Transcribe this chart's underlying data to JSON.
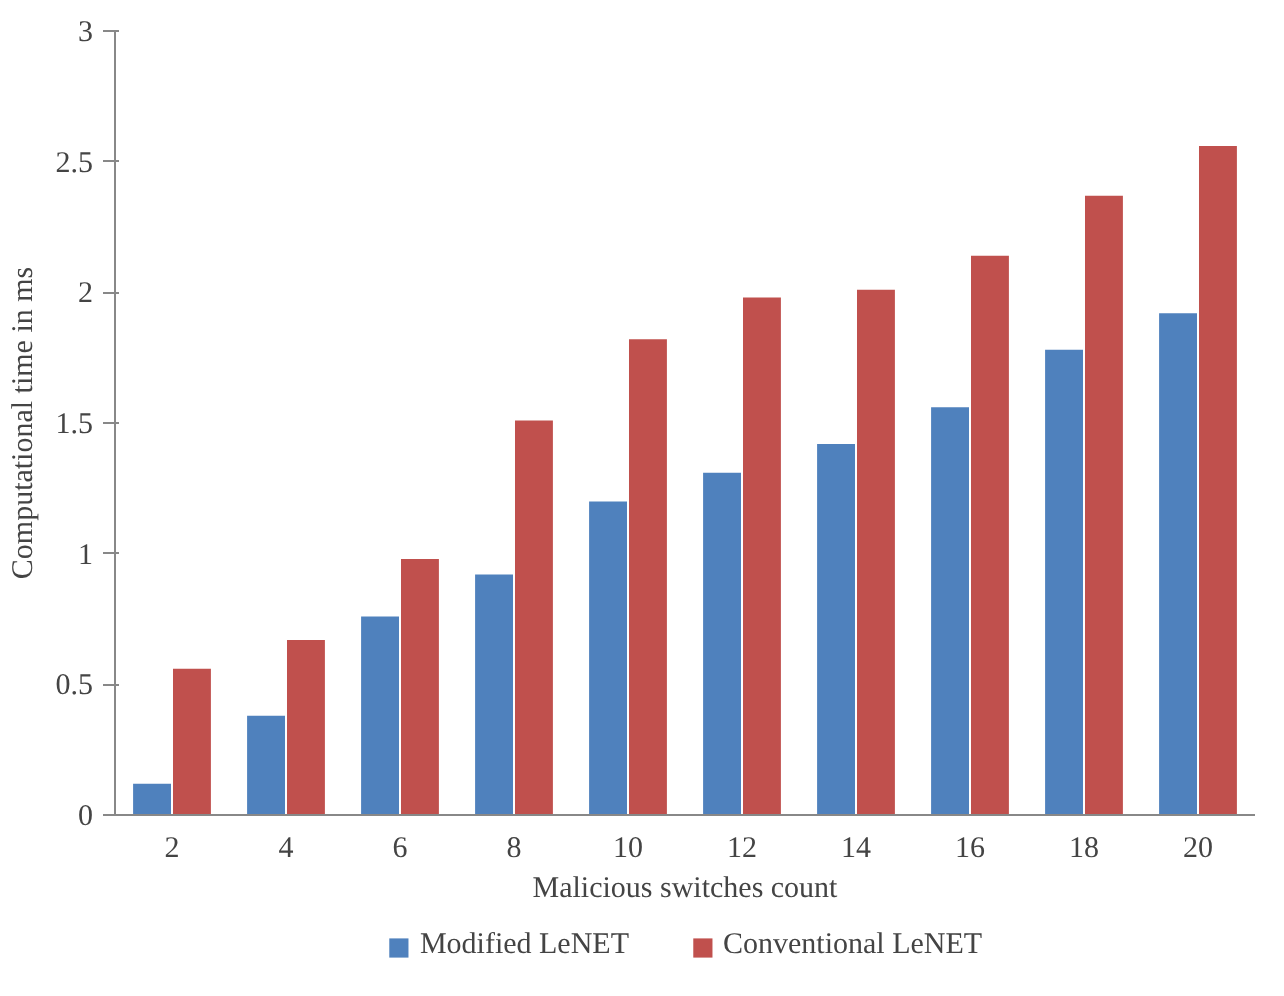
{
  "chart_data": {
    "type": "bar",
    "xlabel": "Malicious switches count",
    "ylabel": "Computational time in ms",
    "categories": [
      "2",
      "4",
      "6",
      "8",
      "10",
      "12",
      "14",
      "16",
      "18",
      "20"
    ],
    "series": [
      {
        "name": "Modified LeNET",
        "color": "#4f81bd",
        "values": [
          0.12,
          0.38,
          0.76,
          0.92,
          1.2,
          1.31,
          1.42,
          1.56,
          1.78,
          1.92
        ]
      },
      {
        "name": "Conventional LeNET",
        "color": "#c0504d",
        "values": [
          0.56,
          0.67,
          0.98,
          1.51,
          1.82,
          1.98,
          2.01,
          2.14,
          2.37,
          2.56
        ]
      }
    ],
    "ylim": [
      0,
      3
    ],
    "yticks": [
      0,
      0.5,
      1,
      1.5,
      2,
      2.5,
      3
    ],
    "legend": "bottom"
  }
}
